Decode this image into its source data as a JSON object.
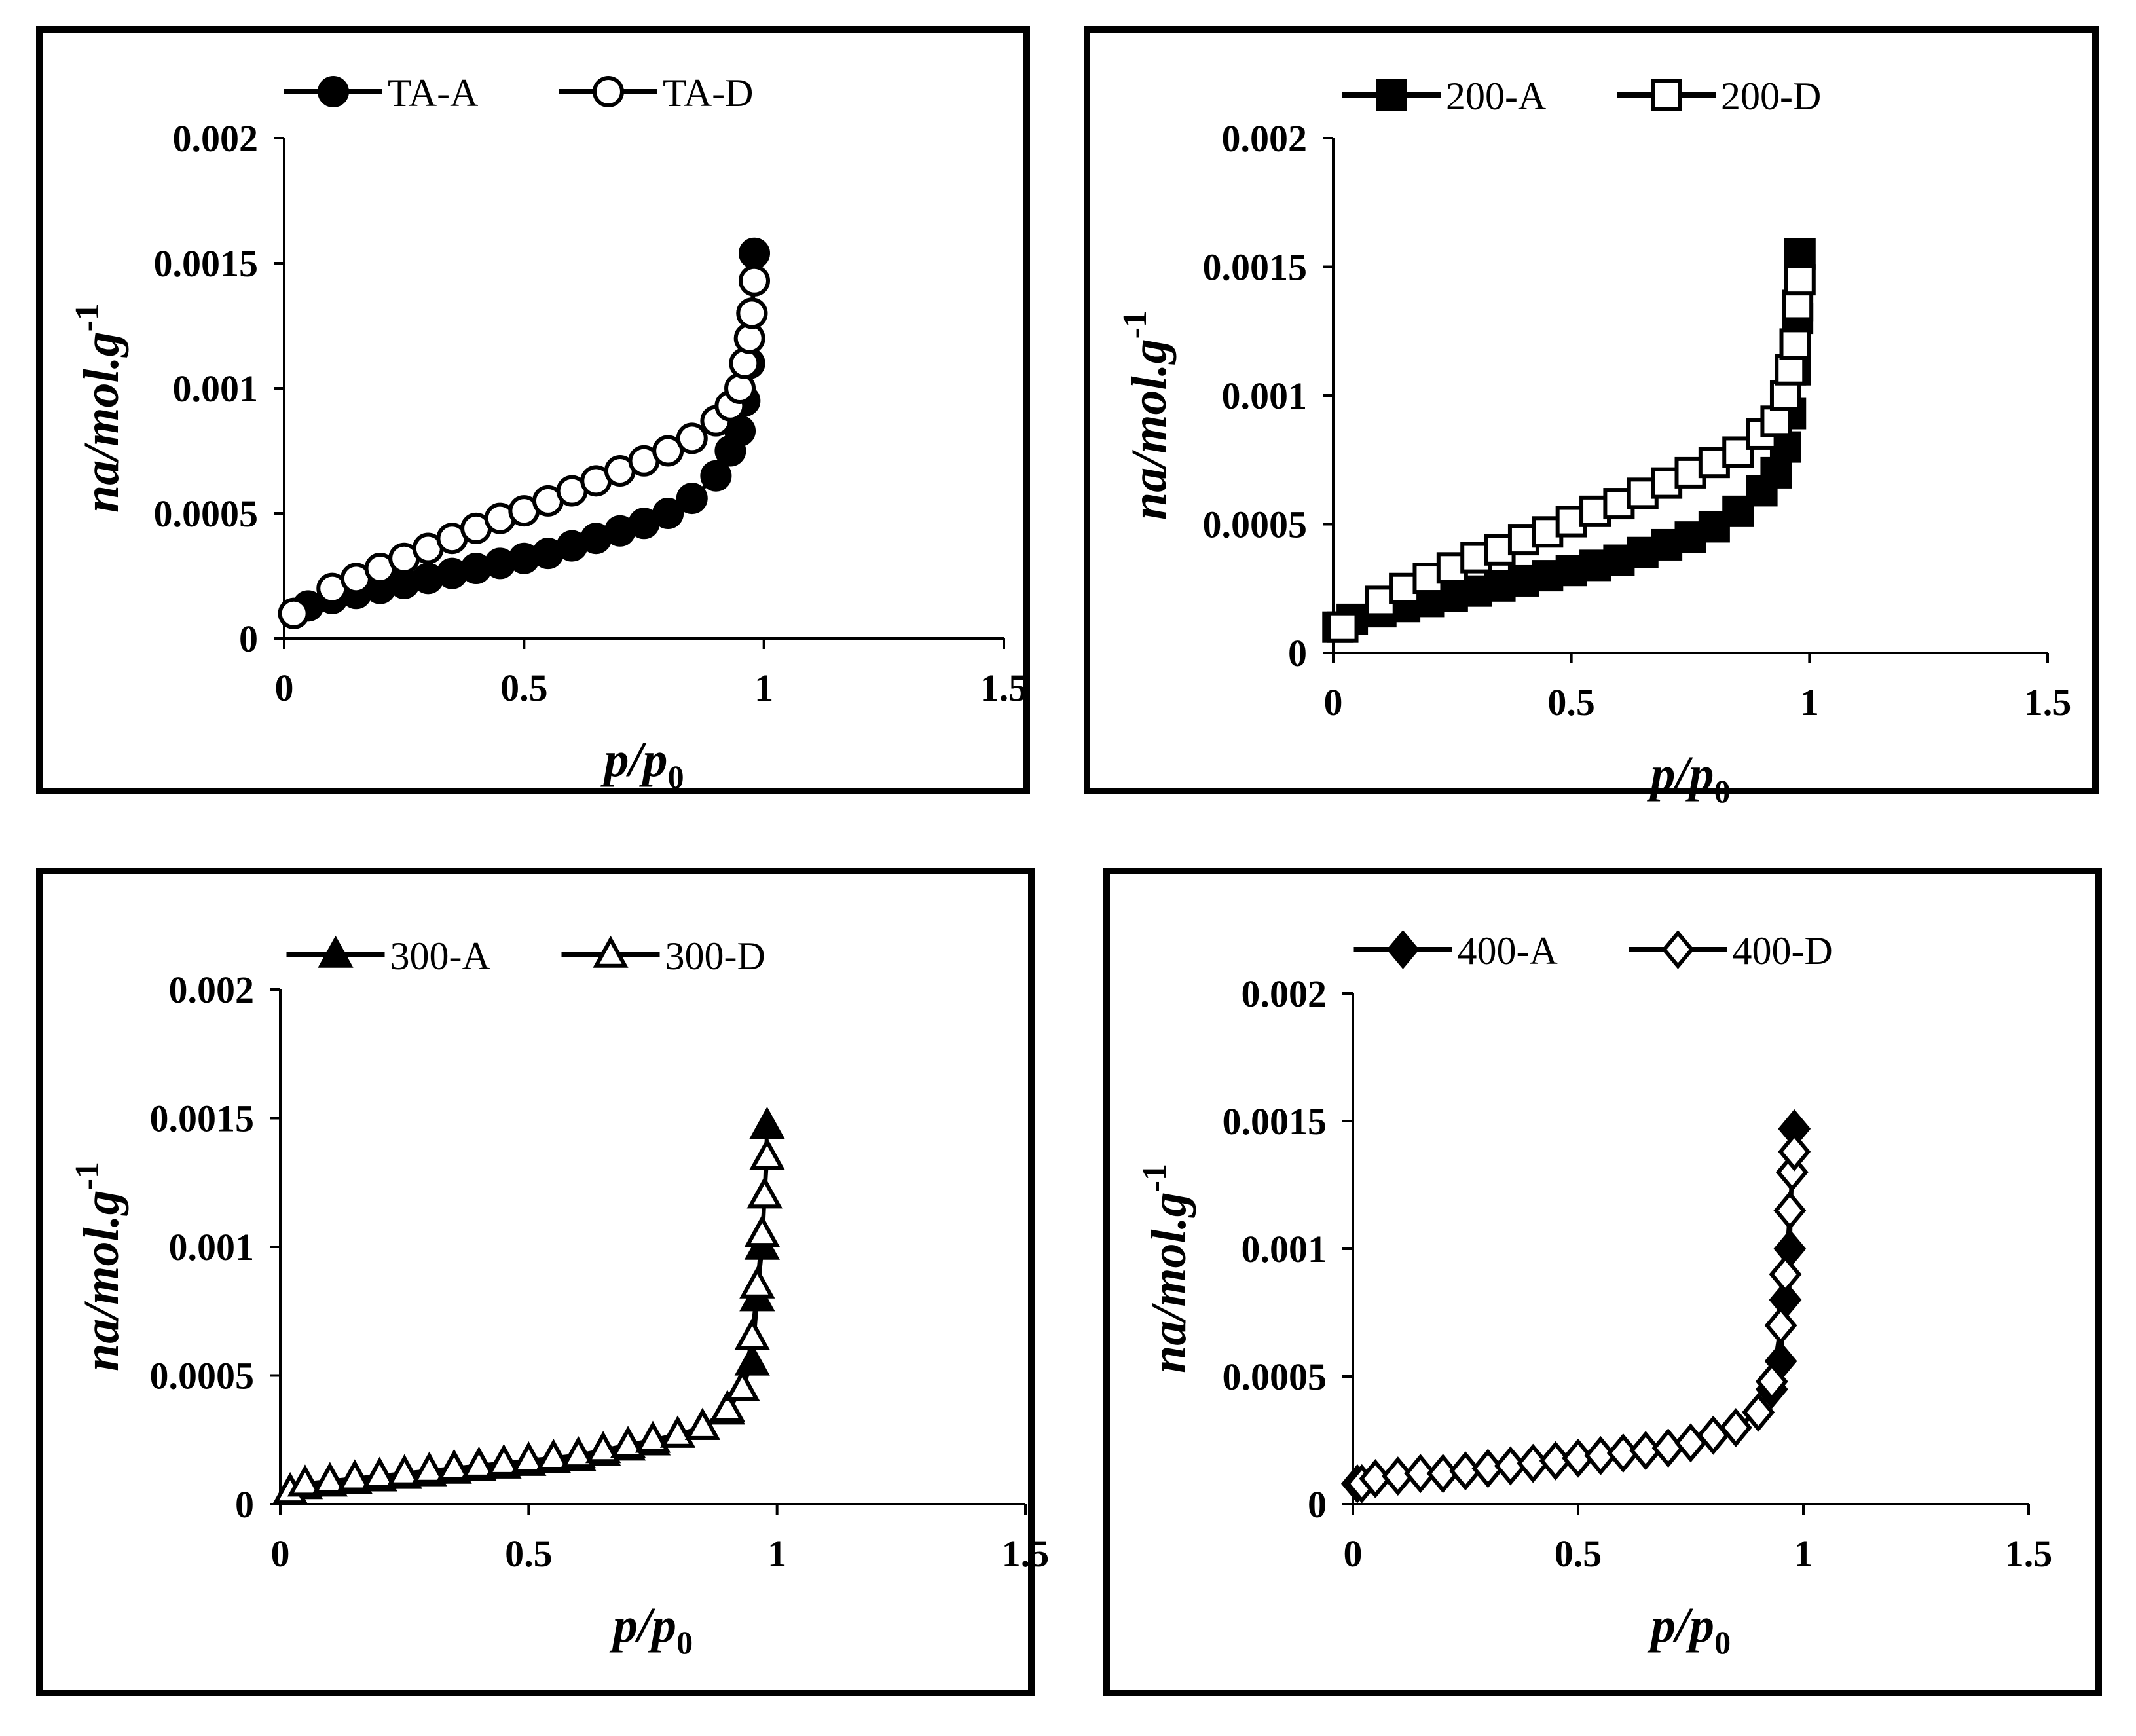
{
  "chart_data": [
    {
      "type": "scatter",
      "title": "",
      "xlabel": "p/p0",
      "ylabel": "na/mol.g-1",
      "xlabel_parts": {
        "main": "p/p",
        "sub": "0"
      },
      "ylabel_parts": {
        "main": "na/mol.g",
        "sup": "-1"
      },
      "xlim": [
        0,
        1.5
      ],
      "ylim": [
        0,
        0.002
      ],
      "xticks": [
        "0",
        "0.5",
        "1",
        "1.5"
      ],
      "yticks": [
        "0",
        "0.0005",
        "0.001",
        "0.0015",
        "0.002"
      ],
      "legend_position": "top-center",
      "series": [
        {
          "name": "TA-A",
          "marker": "circle",
          "fill": "#000000",
          "x": [
            0.02,
            0.05,
            0.1,
            0.15,
            0.2,
            0.25,
            0.3,
            0.35,
            0.4,
            0.45,
            0.5,
            0.55,
            0.6,
            0.65,
            0.7,
            0.75,
            0.8,
            0.85,
            0.9,
            0.93,
            0.95,
            0.96,
            0.97,
            0.975,
            0.98
          ],
          "y": [
            0.0001,
            0.00013,
            0.00016,
            0.00018,
            0.0002,
            0.00022,
            0.00024,
            0.00026,
            0.00028,
            0.0003,
            0.00032,
            0.00034,
            0.00037,
            0.0004,
            0.00043,
            0.00046,
            0.0005,
            0.00056,
            0.00065,
            0.00075,
            0.00083,
            0.00095,
            0.0011,
            0.0013,
            0.00154
          ]
        },
        {
          "name": "TA-D",
          "marker": "circle",
          "fill": "#ffffff",
          "x": [
            0.02,
            0.1,
            0.15,
            0.2,
            0.25,
            0.3,
            0.35,
            0.4,
            0.45,
            0.5,
            0.55,
            0.6,
            0.65,
            0.7,
            0.75,
            0.8,
            0.85,
            0.9,
            0.93,
            0.95,
            0.96,
            0.97,
            0.975,
            0.98
          ],
          "y": [
            0.0001,
            0.0002,
            0.00024,
            0.00028,
            0.00032,
            0.00036,
            0.0004,
            0.00044,
            0.00048,
            0.00051,
            0.00055,
            0.00059,
            0.00063,
            0.00067,
            0.00071,
            0.00075,
            0.0008,
            0.00087,
            0.00093,
            0.001,
            0.0011,
            0.0012,
            0.0013,
            0.00143
          ]
        }
      ]
    },
    {
      "type": "scatter",
      "title": "",
      "xlabel": "p/p0",
      "ylabel": "na/mol.g-1",
      "xlabel_parts": {
        "main": "p/p",
        "sub": "0"
      },
      "ylabel_parts": {
        "main": "na/mol.g",
        "sup": "-1"
      },
      "xlim": [
        0,
        1.5
      ],
      "ylim": [
        0,
        0.002
      ],
      "xticks": [
        "0",
        "0.5",
        "1",
        "1.5"
      ],
      "yticks": [
        "0",
        "0.0005",
        "0.001",
        "0.0015",
        "0.002"
      ],
      "legend_position": "top-center",
      "series": [
        {
          "name": "200-A",
          "marker": "square",
          "fill": "#000000",
          "x": [
            0.01,
            0.04,
            0.1,
            0.15,
            0.2,
            0.25,
            0.3,
            0.35,
            0.4,
            0.45,
            0.5,
            0.55,
            0.6,
            0.65,
            0.7,
            0.75,
            0.8,
            0.85,
            0.9,
            0.93,
            0.95,
            0.96,
            0.97,
            0.975,
            0.98
          ],
          "y": [
            0.0001,
            0.00013,
            0.00016,
            0.00018,
            0.0002,
            0.00022,
            0.00024,
            0.00026,
            0.00028,
            0.0003,
            0.00032,
            0.00034,
            0.00036,
            0.00039,
            0.00042,
            0.00045,
            0.00049,
            0.00055,
            0.00063,
            0.0007,
            0.0008,
            0.00093,
            0.0011,
            0.0013,
            0.00155
          ]
        },
        {
          "name": "200-D",
          "marker": "square",
          "fill": "#ffffff",
          "x": [
            0.02,
            0.1,
            0.15,
            0.2,
            0.25,
            0.3,
            0.35,
            0.4,
            0.45,
            0.5,
            0.55,
            0.6,
            0.65,
            0.7,
            0.75,
            0.8,
            0.85,
            0.9,
            0.93,
            0.95,
            0.96,
            0.97,
            0.975,
            0.98
          ],
          "y": [
            0.0001,
            0.0002,
            0.00025,
            0.00029,
            0.00033,
            0.00037,
            0.0004,
            0.00044,
            0.00047,
            0.00051,
            0.00055,
            0.00058,
            0.00062,
            0.00066,
            0.0007,
            0.00074,
            0.00078,
            0.00085,
            0.0009,
            0.001,
            0.0011,
            0.0012,
            0.00135,
            0.00145
          ]
        }
      ]
    },
    {
      "type": "scatter",
      "title": "",
      "xlabel": "p/p0",
      "ylabel": "na/mol.g-1",
      "xlabel_parts": {
        "main": "p/p",
        "sub": "0"
      },
      "ylabel_parts": {
        "main": "na/mol.g",
        "sup": "-1"
      },
      "xlim": [
        0,
        1.5
      ],
      "ylim": [
        0,
        0.002
      ],
      "xticks": [
        "0",
        "0.5",
        "1",
        "1.5"
      ],
      "yticks": [
        "0",
        "0.0005",
        "0.001",
        "0.0015",
        "0.002"
      ],
      "legend_position": "top-center",
      "series": [
        {
          "name": "300-A",
          "marker": "triangle",
          "fill": "#000000",
          "x": [
            0.02,
            0.05,
            0.1,
            0.15,
            0.2,
            0.25,
            0.3,
            0.35,
            0.4,
            0.45,
            0.5,
            0.55,
            0.6,
            0.65,
            0.7,
            0.75,
            0.8,
            0.85,
            0.9,
            0.93,
            0.95,
            0.96,
            0.97,
            0.975,
            0.98
          ],
          "y": [
            5e-05,
            7e-05,
            8e-05,
            9e-05,
            0.0001,
            0.00011,
            0.00012,
            0.00013,
            0.00014,
            0.00015,
            0.00016,
            0.00017,
            0.00018,
            0.0002,
            0.00022,
            0.00024,
            0.00027,
            0.0003,
            0.00036,
            0.00045,
            0.00055,
            0.0008,
            0.001,
            0.0012,
            0.00147
          ]
        },
        {
          "name": "300-D",
          "marker": "triangle",
          "fill": "#ffffff",
          "x": [
            0.02,
            0.05,
            0.1,
            0.15,
            0.2,
            0.25,
            0.3,
            0.35,
            0.4,
            0.45,
            0.5,
            0.55,
            0.6,
            0.65,
            0.7,
            0.75,
            0.8,
            0.85,
            0.9,
            0.93,
            0.95,
            0.96,
            0.97,
            0.975,
            0.98
          ],
          "y": [
            5e-05,
            8e-05,
            9e-05,
            0.0001,
            0.00011,
            0.00012,
            0.00013,
            0.00014,
            0.00015,
            0.00016,
            0.00017,
            0.00018,
            0.00019,
            0.00021,
            0.00023,
            0.00025,
            0.00027,
            0.0003,
            0.00037,
            0.00045,
            0.00065,
            0.00085,
            0.00105,
            0.0012,
            0.00135
          ]
        }
      ]
    },
    {
      "type": "scatter",
      "title": "",
      "xlabel": "p/p0",
      "ylabel": "na/mol.g-1",
      "xlabel_parts": {
        "main": "p/p",
        "sub": "0"
      },
      "ylabel_parts": {
        "main": "na/mol.g",
        "sup": "-1"
      },
      "xlim": [
        0,
        1.5
      ],
      "ylim": [
        0,
        0.002
      ],
      "xticks": [
        "0",
        "0.5",
        "1",
        "1.5"
      ],
      "yticks": [
        "0",
        "0.0005",
        "0.001",
        "0.0015",
        "0.002"
      ],
      "legend_position": "top-center",
      "series": [
        {
          "name": "400-A",
          "marker": "diamond",
          "fill": "#000000",
          "x": [
            0.01,
            0.05,
            0.1,
            0.15,
            0.2,
            0.25,
            0.3,
            0.35,
            0.4,
            0.45,
            0.5,
            0.55,
            0.6,
            0.65,
            0.7,
            0.75,
            0.8,
            0.85,
            0.9,
            0.93,
            0.95,
            0.96,
            0.97,
            0.975,
            0.98
          ],
          "y": [
            8e-05,
            0.0001,
            0.00011,
            0.00012,
            0.00012,
            0.00013,
            0.00014,
            0.00015,
            0.00016,
            0.00017,
            0.00018,
            0.00019,
            0.0002,
            0.00021,
            0.00022,
            0.00024,
            0.00027,
            0.0003,
            0.00036,
            0.00045,
            0.00056,
            0.0008,
            0.001,
            0.0013,
            0.00147
          ]
        },
        {
          "name": "400-D",
          "marker": "diamond",
          "fill": "#ffffff",
          "x": [
            0.02,
            0.05,
            0.1,
            0.15,
            0.2,
            0.25,
            0.3,
            0.35,
            0.4,
            0.45,
            0.5,
            0.55,
            0.6,
            0.65,
            0.7,
            0.75,
            0.8,
            0.85,
            0.9,
            0.93,
            0.95,
            0.96,
            0.97,
            0.975,
            0.98
          ],
          "y": [
            8e-05,
            0.0001,
            0.00011,
            0.00012,
            0.00012,
            0.00013,
            0.00014,
            0.00015,
            0.00016,
            0.00017,
            0.00018,
            0.00019,
            0.0002,
            0.00021,
            0.00022,
            0.00024,
            0.00027,
            0.0003,
            0.00036,
            0.00048,
            0.0007,
            0.0009,
            0.00115,
            0.0013,
            0.00138
          ]
        }
      ]
    }
  ]
}
